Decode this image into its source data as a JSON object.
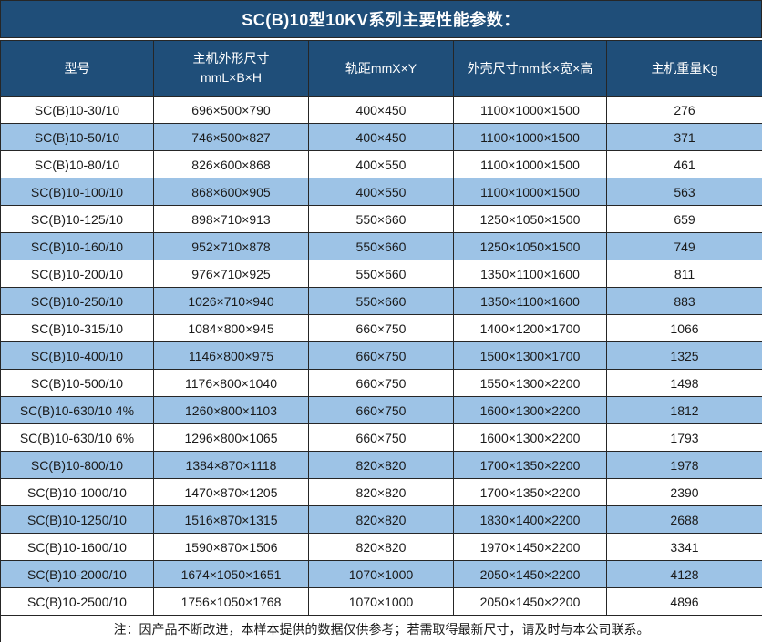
{
  "title": "SC(B)10型10KV系列主要性能参数：",
  "colors": {
    "title_bg": "#1F4E79",
    "header_bg": "#1F4E79",
    "stripe_bg": "#9DC3E6",
    "row_bg": "#FFFFFF",
    "border_color": "#262626",
    "header_text": "#FFFFFF",
    "body_text": "#1A1A1A",
    "page_bg": "#FFFFFF"
  },
  "table": {
    "headers": {
      "model": "型号",
      "dimensions_line1": "主机外形尺寸",
      "dimensions_line2": "mmL×B×H",
      "gauge": "轨距mmX×Y",
      "shell": "外壳尺寸mm长×宽×高",
      "weight": "主机重量Kg"
    },
    "rows": [
      {
        "model": "SC(B)10-30/10",
        "dimensions": "696×500×790",
        "gauge": "400×450",
        "shell": "1100×1000×1500",
        "weight": "276"
      },
      {
        "model": "SC(B)10-50/10",
        "dimensions": "746×500×827",
        "gauge": "400×450",
        "shell": "1100×1000×1500",
        "weight": "371"
      },
      {
        "model": "SC(B)10-80/10",
        "dimensions": "826×600×868",
        "gauge": "400×550",
        "shell": "1100×1000×1500",
        "weight": "461"
      },
      {
        "model": "SC(B)10-100/10",
        "dimensions": "868×600×905",
        "gauge": "400×550",
        "shell": "1100×1000×1500",
        "weight": "563"
      },
      {
        "model": "SC(B)10-125/10",
        "dimensions": "898×710×913",
        "gauge": "550×660",
        "shell": "1250×1050×1500",
        "weight": "659"
      },
      {
        "model": "SC(B)10-160/10",
        "dimensions": "952×710×878",
        "gauge": "550×660",
        "shell": "1250×1050×1500",
        "weight": "749"
      },
      {
        "model": "SC(B)10-200/10",
        "dimensions": "976×710×925",
        "gauge": "550×660",
        "shell": "1350×1100×1600",
        "weight": "811"
      },
      {
        "model": "SC(B)10-250/10",
        "dimensions": "1026×710×940",
        "gauge": "550×660",
        "shell": "1350×1100×1600",
        "weight": "883"
      },
      {
        "model": "SC(B)10-315/10",
        "dimensions": "1084×800×945",
        "gauge": "660×750",
        "shell": "1400×1200×1700",
        "weight": "1066"
      },
      {
        "model": "SC(B)10-400/10",
        "dimensions": "1146×800×975",
        "gauge": "660×750",
        "shell": "1500×1300×1700",
        "weight": "1325"
      },
      {
        "model": "SC(B)10-500/10",
        "dimensions": "1176×800×1040",
        "gauge": "660×750",
        "shell": "1550×1300×2200",
        "weight": "1498"
      },
      {
        "model": "SC(B)10-630/10 4%",
        "dimensions": "1260×800×1103",
        "gauge": "660×750",
        "shell": "1600×1300×2200",
        "weight": "1812"
      },
      {
        "model": "SC(B)10-630/10 6%",
        "dimensions": "1296×800×1065",
        "gauge": "660×750",
        "shell": "1600×1300×2200",
        "weight": "1793"
      },
      {
        "model": "SC(B)10-800/10",
        "dimensions": "1384×870×1118",
        "gauge": "820×820",
        "shell": "1700×1350×2200",
        "weight": "1978"
      },
      {
        "model": "SC(B)10-1000/10",
        "dimensions": "1470×870×1205",
        "gauge": "820×820",
        "shell": "1700×1350×2200",
        "weight": "2390"
      },
      {
        "model": "SC(B)10-1250/10",
        "dimensions": "1516×870×1315",
        "gauge": "820×820",
        "shell": "1830×1400×2200",
        "weight": "2688"
      },
      {
        "model": "SC(B)10-1600/10",
        "dimensions": "1590×870×1506",
        "gauge": "820×820",
        "shell": "1970×1450×2200",
        "weight": "3341"
      },
      {
        "model": "SC(B)10-2000/10",
        "dimensions": "1674×1050×1651",
        "gauge": "1070×1000",
        "shell": "2050×1450×2200",
        "weight": "4128"
      },
      {
        "model": "SC(B)10-2500/10",
        "dimensions": "1756×1050×1768",
        "gauge": "1070×1000",
        "shell": "2050×1450×2200",
        "weight": "4896"
      }
    ],
    "footer_note": "注：因产品不断改进，本样本提供的数据仅供参考；若需取得最新尺寸，请及时与本公司联系。"
  }
}
